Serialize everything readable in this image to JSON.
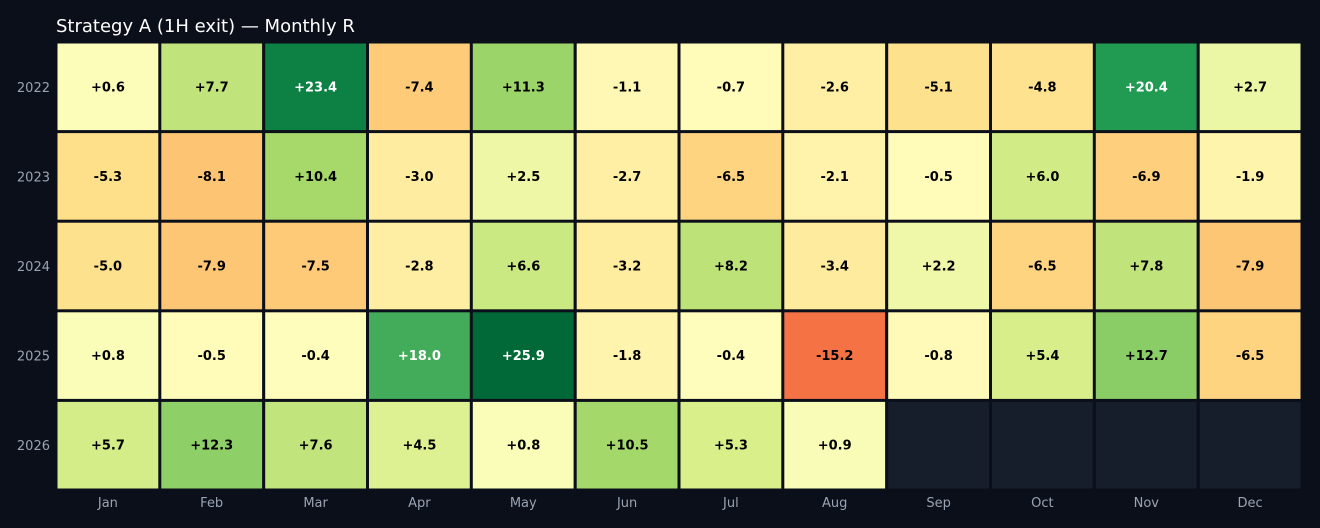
{
  "chart_data": {
    "type": "heatmap",
    "title": "Strategy A (1H exit) — Monthly R",
    "xlabel": "",
    "ylabel": "",
    "x_categories": [
      "Jan",
      "Feb",
      "Mar",
      "Apr",
      "May",
      "Jun",
      "Jul",
      "Aug",
      "Sep",
      "Oct",
      "Nov",
      "Dec"
    ],
    "y_categories": [
      "2022",
      "2023",
      "2024",
      "2025",
      "2026"
    ],
    "values": [
      [
        0.6,
        7.7,
        23.4,
        -7.4,
        11.3,
        -1.1,
        -0.7,
        -2.6,
        -5.1,
        -4.8,
        20.4,
        2.7
      ],
      [
        -5.3,
        -8.1,
        10.4,
        -3.0,
        2.5,
        -2.7,
        -6.5,
        -2.1,
        -0.5,
        6.0,
        -6.9,
        -1.9
      ],
      [
        -5.0,
        -7.9,
        -7.5,
        -2.8,
        6.6,
        -3.2,
        8.2,
        -3.4,
        2.2,
        -6.5,
        7.8,
        -7.9
      ],
      [
        0.8,
        -0.5,
        -0.4,
        18.0,
        25.9,
        -1.8,
        -0.4,
        -15.2,
        -0.8,
        5.4,
        12.7,
        -6.5
      ],
      [
        5.7,
        12.3,
        7.6,
        4.5,
        0.8,
        10.5,
        5.3,
        0.9,
        null,
        null,
        null,
        null
      ]
    ],
    "colormap": "RdYlGn",
    "color_range": [
      -26,
      26
    ],
    "empty_cell_color": "#161d2b",
    "background_color": "#0b0f19"
  }
}
